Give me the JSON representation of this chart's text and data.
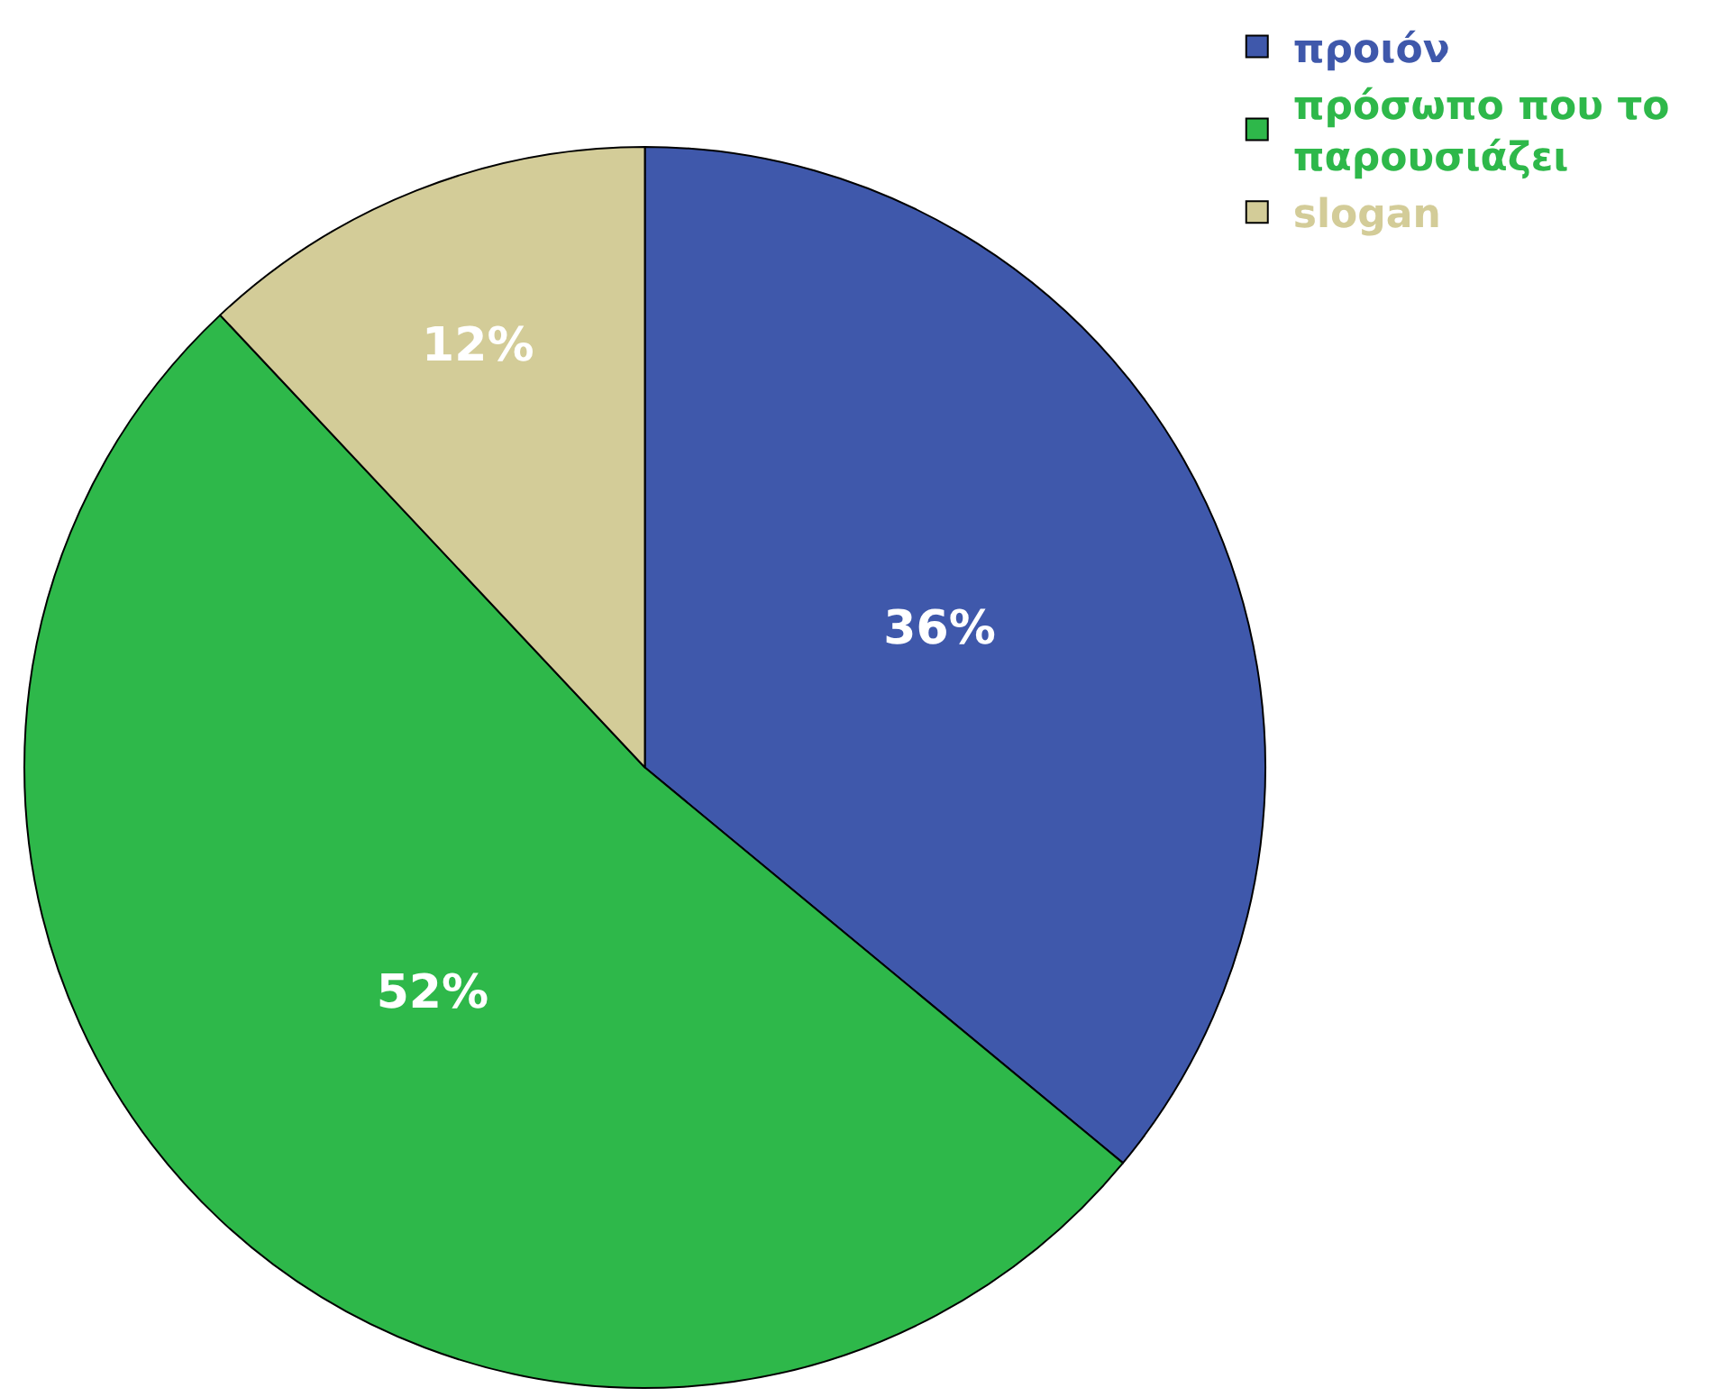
{
  "chart_data": {
    "type": "pie",
    "categories": [
      "προιόν",
      "πρόσωπο που το παρουσιάζει",
      "slogan"
    ],
    "values": [
      36,
      52,
      12
    ],
    "colors": [
      "#3f58ab",
      "#2eb84a",
      "#d3cc98"
    ],
    "value_labels": [
      "36%",
      "52%",
      "12%"
    ],
    "legend": "top right"
  }
}
